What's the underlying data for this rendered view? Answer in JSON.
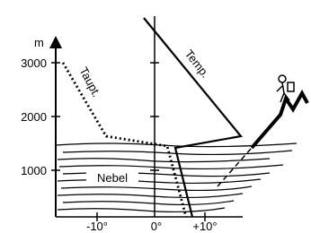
{
  "axis": {
    "unit": "m",
    "heights": [
      "3000",
      "2000",
      "1000"
    ],
    "temperatures": [
      "-10°",
      "0°",
      "+10°"
    ]
  },
  "curves": {
    "dew_point": "Taupt.",
    "temperature": "Temp."
  },
  "layer": {
    "fog": "Nebel"
  }
}
